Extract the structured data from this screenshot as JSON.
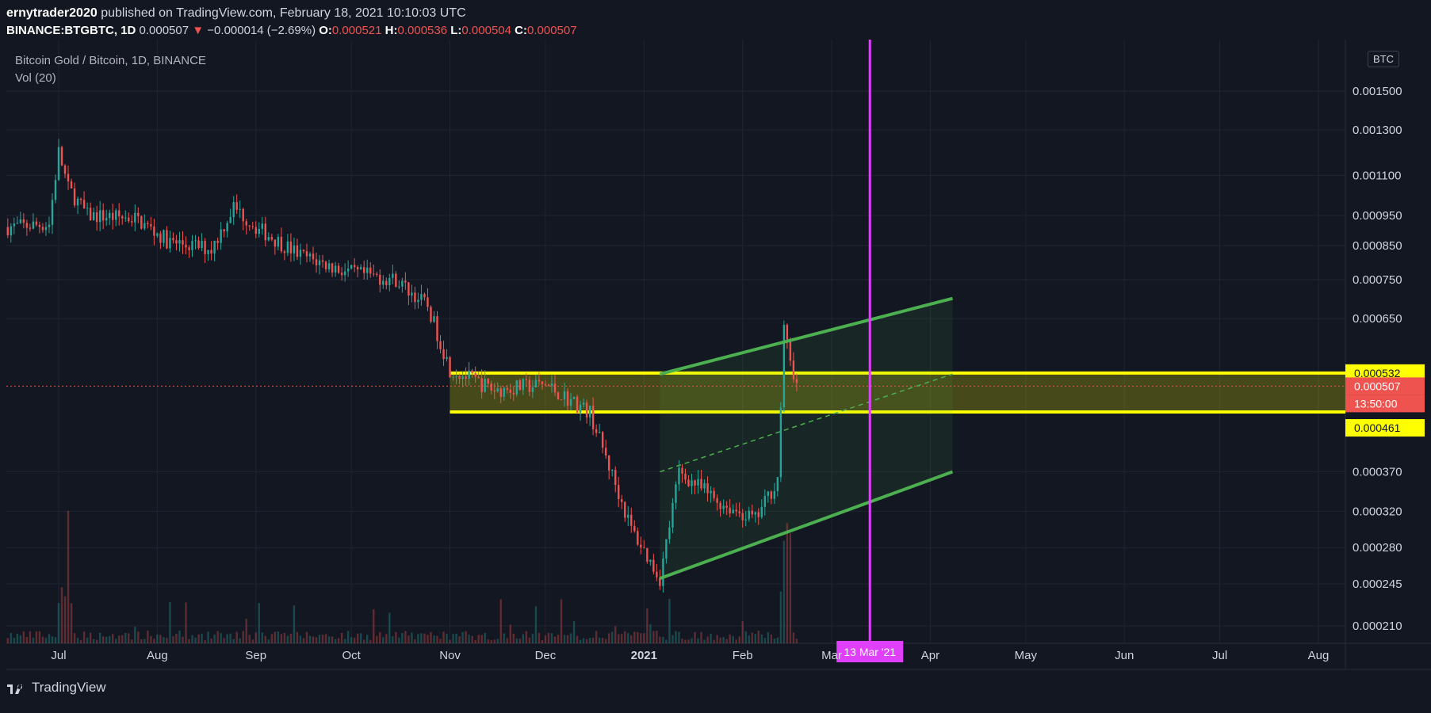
{
  "header": {
    "author": "ernytrader2020",
    "published_text": "published on TradingView.com, February 18, 2021 10:10:03 UTC",
    "symbol": "BINANCE:BTGBTC, 1D",
    "last": "0.000507",
    "arrow": "▼",
    "change": "−0.000014 (−2.69%)",
    "o_label": "O:",
    "o_value": "0.000521",
    "h_label": "H:",
    "h_value": "0.000536",
    "l_label": "L:",
    "l_value": "0.000504",
    "c_label": "C:",
    "c_value": "0.000507"
  },
  "legend": {
    "title": "Bitcoin Gold / Bitcoin, 1D, BINANCE",
    "indicator": "Vol (20)"
  },
  "currency_badge": "BTC",
  "brand": "TradingView",
  "colors": {
    "background": "#131722",
    "up": "#26a69a",
    "down": "#ef5350",
    "zone": "#ffff00",
    "channel": "#4caf50",
    "vertical_line": "#e040fb",
    "grid": "#1f2433"
  },
  "chart_data": {
    "type": "candlestick",
    "y_scale": "log",
    "y_ticks": [
      "0.001500",
      "0.001300",
      "0.001100",
      "0.000950",
      "0.000850",
      "0.000750",
      "0.000650",
      "0.000370",
      "0.000320",
      "0.000280",
      "0.000245",
      "0.000210"
    ],
    "y_tick_values": [
      0.0015,
      0.0013,
      0.0011,
      0.00095,
      0.00085,
      0.00075,
      0.00065,
      0.00037,
      0.00032,
      0.00028,
      0.000245,
      0.00021
    ],
    "x_ticks": [
      "Jul",
      "Aug",
      "Sep",
      "Oct",
      "Nov",
      "Dec",
      "2021",
      "Feb",
      "Mar",
      "Apr",
      "May",
      "Jun",
      "Jul",
      "Aug"
    ],
    "x_tick_dates": [
      "2020-07-01",
      "2020-08-01",
      "2020-09-01",
      "2020-10-01",
      "2020-11-01",
      "2020-12-01",
      "2021-01-01",
      "2021-02-01",
      "2021-03-01",
      "2021-04-01",
      "2021-05-01",
      "2021-06-01",
      "2021-07-01",
      "2021-08-01"
    ],
    "price_path": [
      [
        "2020-06-15",
        0.00091
      ],
      [
        "2020-06-28",
        0.00092
      ],
      [
        "2020-07-01",
        0.0012
      ],
      [
        "2020-07-04",
        0.00105
      ],
      [
        "2020-07-10",
        0.00095
      ],
      [
        "2020-07-25",
        0.00094
      ],
      [
        "2020-08-05",
        0.00086
      ],
      [
        "2020-08-18",
        0.00084
      ],
      [
        "2020-08-25",
        0.00098
      ],
      [
        "2020-09-01",
        0.00091
      ],
      [
        "2020-09-15",
        0.00082
      ],
      [
        "2020-09-30",
        0.00077
      ],
      [
        "2020-10-15",
        0.00075
      ],
      [
        "2020-10-25",
        0.00068
      ],
      [
        "2020-11-01",
        0.00054
      ],
      [
        "2020-11-15",
        0.0005
      ],
      [
        "2020-12-01",
        0.00051
      ],
      [
        "2020-12-15",
        0.00046
      ],
      [
        "2020-12-28",
        0.0003
      ],
      [
        "2021-01-06",
        0.00025
      ],
      [
        "2021-01-12",
        0.00037
      ],
      [
        "2021-01-25",
        0.00033
      ],
      [
        "2021-02-05",
        0.00031
      ],
      [
        "2021-02-12",
        0.00036
      ],
      [
        "2021-02-14",
        0.00062
      ],
      [
        "2021-02-18",
        0.000507
      ]
    ],
    "zone": {
      "top": 0.000532,
      "bottom": 0.000461,
      "start": "2020-11-01"
    },
    "channel": {
      "upper": [
        [
          "2021-01-06",
          0.00053
        ],
        [
          "2021-04-08",
          0.0007
        ]
      ],
      "lower": [
        [
          "2021-01-06",
          0.00025
        ],
        [
          "2021-04-08",
          0.00037
        ]
      ],
      "mid": [
        [
          "2021-01-06",
          0.00037
        ],
        [
          "2021-04-08",
          0.00053
        ]
      ]
    },
    "vertical_line": {
      "date": "2021-03-13",
      "label": "13 Mar '21"
    },
    "price_labels": [
      {
        "value": 0.000532,
        "text": "0.000532",
        "kind": "zone"
      },
      {
        "value": 0.000507,
        "text": "0.000507",
        "kind": "last"
      },
      {
        "value": 0.000494,
        "text": "13:50:00",
        "kind": "countdown"
      },
      {
        "value": 0.000461,
        "text": "0.000461",
        "kind": "zone"
      }
    ]
  }
}
